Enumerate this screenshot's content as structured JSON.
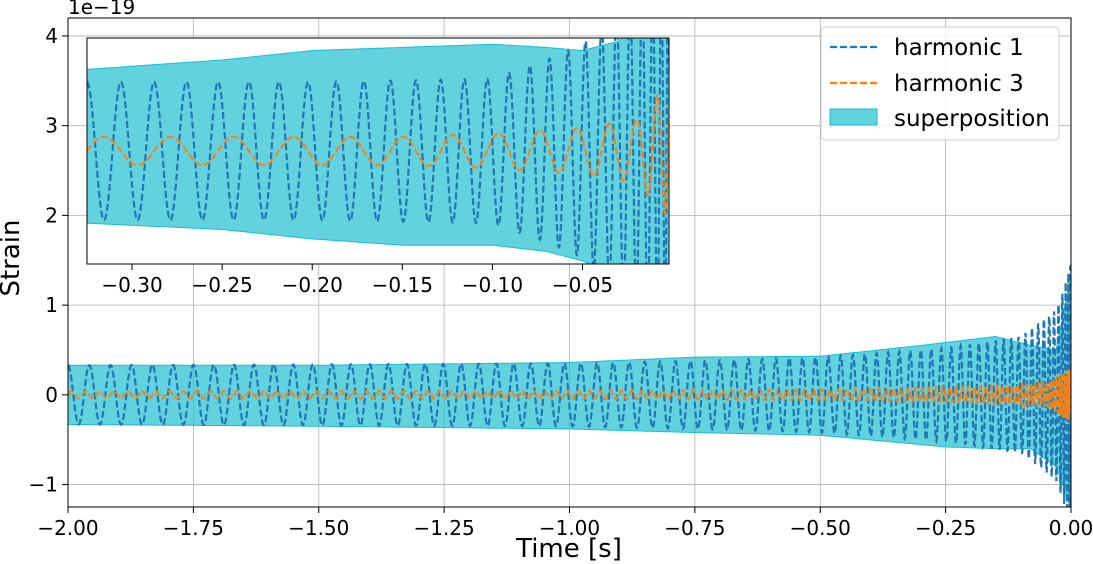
{
  "chart_data": [
    {
      "type": "line",
      "name": "main",
      "xlabel": "Time [s]",
      "ylabel": "Strain",
      "y_offset_label": "1e−19",
      "xlim": [
        -2.0,
        0.0
      ],
      "ylim": [
        -1.25,
        4.2
      ],
      "xticks": [
        -2.0,
        -1.75,
        -1.5,
        -1.25,
        -1.0,
        -0.75,
        -0.5,
        -0.25,
        0.0
      ],
      "xtick_labels": [
        "−2.00",
        "−1.75",
        "−1.50",
        "−1.25",
        "−1.00",
        "−0.75",
        "−0.50",
        "−0.25",
        "0.00"
      ],
      "yticks": [
        -1,
        0,
        1,
        2,
        3,
        4
      ],
      "ytick_labels": [
        "−1",
        "0",
        "1",
        "2",
        "3",
        "4"
      ],
      "grid": true,
      "legend": {
        "placement": "top-right",
        "entries": [
          {
            "label": "harmonic 1",
            "style": "dashed",
            "color": "#1f77b4"
          },
          {
            "label": "harmonic 3",
            "style": "dashed",
            "color": "#ff7f0e"
          },
          {
            "label": "superposition",
            "style": "fill",
            "color": "#17becf"
          }
        ]
      },
      "series": [
        {
          "name": "harmonic 1",
          "model": "chirp",
          "amplitude_keypoints": [
            [
              -2.0,
              0.33
            ],
            [
              -1.5,
              0.34
            ],
            [
              -1.0,
              0.35
            ],
            [
              -0.75,
              0.38
            ],
            [
              -0.5,
              0.42
            ],
            [
              -0.25,
              0.52
            ],
            [
              -0.1,
              0.65
            ],
            [
              -0.03,
              0.95
            ],
            [
              0.0,
              1.45
            ]
          ],
          "cycles_to_merger": 74,
          "peak_value": 1.45,
          "min_value": -1.25
        },
        {
          "name": "harmonic 3",
          "model": "chirp",
          "amplitude_keypoints": [
            [
              -2.0,
              0.04
            ],
            [
              -1.0,
              0.045
            ],
            [
              -0.5,
              0.06
            ],
            [
              -0.2,
              0.09
            ],
            [
              -0.05,
              0.13
            ],
            [
              0.0,
              0.3
            ]
          ],
          "frequency_ratio": 1.5,
          "y_center": 0.0
        },
        {
          "name": "superposition",
          "model": "envelope",
          "upper_keypoints": [
            [
              -2.0,
              0.33
            ],
            [
              -1.5,
              0.33
            ],
            [
              -1.0,
              0.36
            ],
            [
              -0.75,
              0.42
            ],
            [
              -0.5,
              0.43
            ],
            [
              -0.3,
              0.55
            ],
            [
              -0.15,
              0.65
            ],
            [
              -0.08,
              0.55
            ],
            [
              -0.03,
              0.5
            ],
            [
              0.0,
              1.3
            ]
          ],
          "lower_keypoints": [
            [
              -2.0,
              -0.33
            ],
            [
              -1.5,
              -0.35
            ],
            [
              -1.0,
              -0.38
            ],
            [
              -0.75,
              -0.42
            ],
            [
              -0.5,
              -0.45
            ],
            [
              -0.25,
              -0.58
            ],
            [
              -0.15,
              -0.6
            ],
            [
              -0.08,
              -0.6
            ],
            [
              -0.03,
              -0.8
            ],
            [
              0.0,
              -1.25
            ]
          ]
        }
      ]
    },
    {
      "type": "line",
      "name": "inset",
      "placement": "upper-left",
      "xlim": [
        -0.325,
        -0.002
      ],
      "ylim": [
        -3.6,
        3.6
      ],
      "xticks": [
        -0.3,
        -0.25,
        -0.2,
        -0.15,
        -0.1,
        -0.05
      ],
      "xtick_labels": [
        "−0.30",
        "−0.25",
        "−0.20",
        "−0.15",
        "−0.10",
        "−0.05"
      ],
      "grid": false,
      "series": [
        {
          "name": "harmonic 1",
          "model": "chirp",
          "amplitude_keypoints": [
            [
              -0.325,
              2.2
            ],
            [
              -0.2,
              2.2
            ],
            [
              -0.1,
              2.3
            ],
            [
              -0.07,
              2.9
            ],
            [
              -0.05,
              3.4
            ],
            [
              -0.03,
              4.5
            ],
            [
              0.0,
              6.0
            ]
          ],
          "cycles_in_window": 26
        },
        {
          "name": "harmonic 3",
          "model": "chirp",
          "amplitude_keypoints": [
            [
              -0.325,
              0.45
            ],
            [
              -0.15,
              0.45
            ],
            [
              -0.1,
              0.55
            ],
            [
              -0.05,
              0.75
            ],
            [
              -0.02,
              1.0
            ],
            [
              -0.005,
              2.0
            ]
          ],
          "y_center": 0.0
        },
        {
          "name": "superposition",
          "model": "envelope",
          "upper_keypoints": [
            [
              -0.325,
              2.6
            ],
            [
              -0.25,
              2.9
            ],
            [
              -0.2,
              3.2
            ],
            [
              -0.15,
              3.3
            ],
            [
              -0.1,
              3.4
            ],
            [
              -0.07,
              3.3
            ],
            [
              -0.05,
              3.2
            ],
            [
              -0.03,
              3.5
            ],
            [
              -0.02,
              4.0
            ],
            [
              0.0,
              4.2
            ]
          ],
          "lower_keypoints": [
            [
              -0.325,
              -2.3
            ],
            [
              -0.25,
              -2.5
            ],
            [
              -0.2,
              -2.8
            ],
            [
              -0.15,
              -3.0
            ],
            [
              -0.1,
              -3.0
            ],
            [
              -0.07,
              -3.2
            ],
            [
              -0.05,
              -3.5
            ],
            [
              -0.03,
              -4.0
            ],
            [
              0.0,
              -4.2
            ]
          ]
        }
      ]
    }
  ]
}
